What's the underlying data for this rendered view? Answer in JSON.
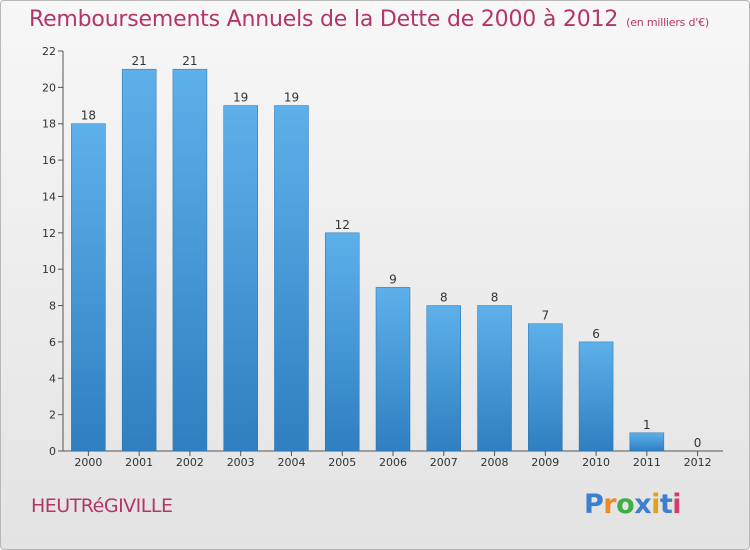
{
  "chart_data": {
    "type": "bar",
    "title": "Remboursements Annuels de la Dette de 2000 à 2012",
    "subtitle": "(en milliers d'€)",
    "categories": [
      "2000",
      "2001",
      "2002",
      "2003",
      "2004",
      "2005",
      "2006",
      "2007",
      "2008",
      "2009",
      "2010",
      "2011",
      "2012"
    ],
    "values": [
      18,
      21,
      21,
      19,
      19,
      12,
      9,
      8,
      8,
      7,
      6,
      1,
      0
    ],
    "value_labels": [
      "18",
      "21",
      "21",
      "19",
      "19",
      "12",
      "9",
      "8",
      "8",
      "7",
      "6",
      "1",
      "0"
    ],
    "ylim": [
      0,
      22
    ],
    "yticks": [
      0,
      2,
      4,
      6,
      8,
      10,
      12,
      14,
      16,
      18,
      20,
      22
    ],
    "grid": false,
    "bar_color": "#4a9bd8"
  },
  "commune": "HEUTRéGIVILLE",
  "logo": {
    "letters": [
      "P",
      "r",
      "o",
      "x",
      "i",
      "t",
      "i"
    ],
    "colors": [
      "#3f7fd0",
      "#f08a1f",
      "#3fae49",
      "#3f7fd0",
      "#e2a020",
      "#3f7fd0",
      "#d23c6e"
    ]
  },
  "colors": {
    "title": "#b3356c",
    "axis": "#555555"
  }
}
